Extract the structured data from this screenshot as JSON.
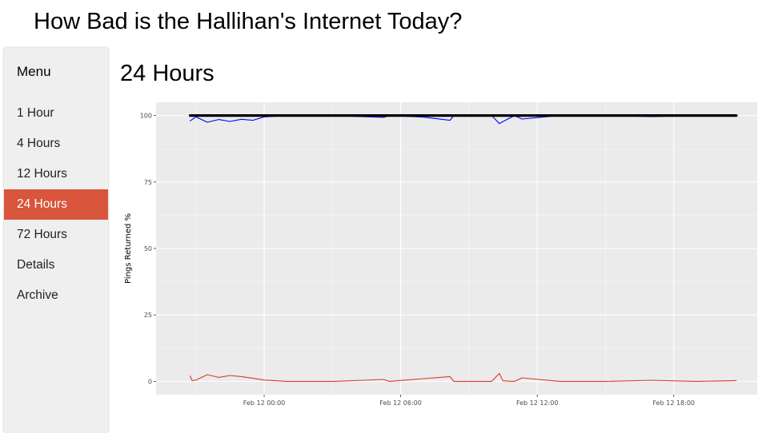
{
  "site": {
    "title": "How Bad is the Hallihan's Internet Today?"
  },
  "sidebar": {
    "heading": "Menu",
    "items": [
      {
        "label": "1 Hour",
        "active": false
      },
      {
        "label": "4 Hours",
        "active": false
      },
      {
        "label": "12 Hours",
        "active": false
      },
      {
        "label": "24 Hours",
        "active": true
      },
      {
        "label": "72 Hours",
        "active": false
      },
      {
        "label": "Details",
        "active": false
      },
      {
        "label": "Archive",
        "active": false
      }
    ]
  },
  "page": {
    "title": "24 Hours"
  },
  "colors": {
    "accent": "#d9553b",
    "panel_background": "#ebebeb",
    "series_black": "#000000",
    "series_blue": "#0000ff",
    "series_red": "#d93a25"
  },
  "chart_data": {
    "type": "line",
    "title": "",
    "xlabel": "",
    "ylabel": "Pings Returned %",
    "x_ticks": [
      "Feb 12 00:00",
      "Feb 12 06:00",
      "Feb 12 12:00",
      "Feb 12 18:00"
    ],
    "y_ticks": [
      0,
      25,
      50,
      75,
      100
    ],
    "xlim": [
      "Feb 11 19:15",
      "Feb 12 21:40"
    ],
    "ylim": [
      -5,
      105
    ],
    "grid": true,
    "legend": "none",
    "series": [
      {
        "color": "#000000",
        "x": [
          "Feb 11 20:45",
          "Feb 12 20:45"
        ],
        "y": [
          100,
          100
        ]
      },
      {
        "color": "#0000ff",
        "x": [
          "Feb 11 20:45",
          "Feb 11 21:00",
          "Feb 11 21:30",
          "Feb 11 22:00",
          "Feb 11 22:30",
          "Feb 11 23:00",
          "Feb 11 23:30",
          "Feb 12 00:00",
          "Feb 12 01:00",
          "Feb 12 03:00",
          "Feb 12 05:15",
          "Feb 12 05:30",
          "Feb 12 07:00",
          "Feb 12 08:10",
          "Feb 12 08:20",
          "Feb 12 10:00",
          "Feb 12 10:20",
          "Feb 12 11:00",
          "Feb 12 11:20",
          "Feb 12 13:00",
          "Feb 12 15:00",
          "Feb 12 17:00",
          "Feb 12 19:00",
          "Feb 12 20:45"
        ],
        "y": [
          98,
          99.5,
          97.5,
          98.5,
          97.8,
          98.6,
          98.2,
          99.5,
          100,
          100,
          99.3,
          100,
          99.4,
          98.2,
          100,
          100,
          97,
          100,
          98.7,
          100,
          100,
          99.6,
          100,
          99.7
        ]
      },
      {
        "color": "#d93a25",
        "x": [
          "Feb 11 20:45",
          "Feb 11 20:50",
          "Feb 11 21:00",
          "Feb 11 21:30",
          "Feb 11 22:00",
          "Feb 11 22:30",
          "Feb 11 23:00",
          "Feb 11 23:30",
          "Feb 12 00:00",
          "Feb 12 01:00",
          "Feb 12 03:00",
          "Feb 12 05:15",
          "Feb 12 05:30",
          "Feb 12 07:00",
          "Feb 12 08:10",
          "Feb 12 08:20",
          "Feb 12 10:00",
          "Feb 12 10:20",
          "Feb 12 10:30",
          "Feb 12 11:00",
          "Feb 12 11:20",
          "Feb 12 13:00",
          "Feb 12 15:00",
          "Feb 12 17:00",
          "Feb 12 19:00",
          "Feb 12 20:45"
        ],
        "y": [
          2,
          0.3,
          0.5,
          2.5,
          1.5,
          2.2,
          1.8,
          1.2,
          0.5,
          0,
          0,
          0.7,
          0,
          1,
          1.8,
          0,
          0,
          3,
          0.2,
          0,
          1.3,
          0,
          0,
          0.4,
          0,
          0.3
        ]
      }
    ]
  }
}
